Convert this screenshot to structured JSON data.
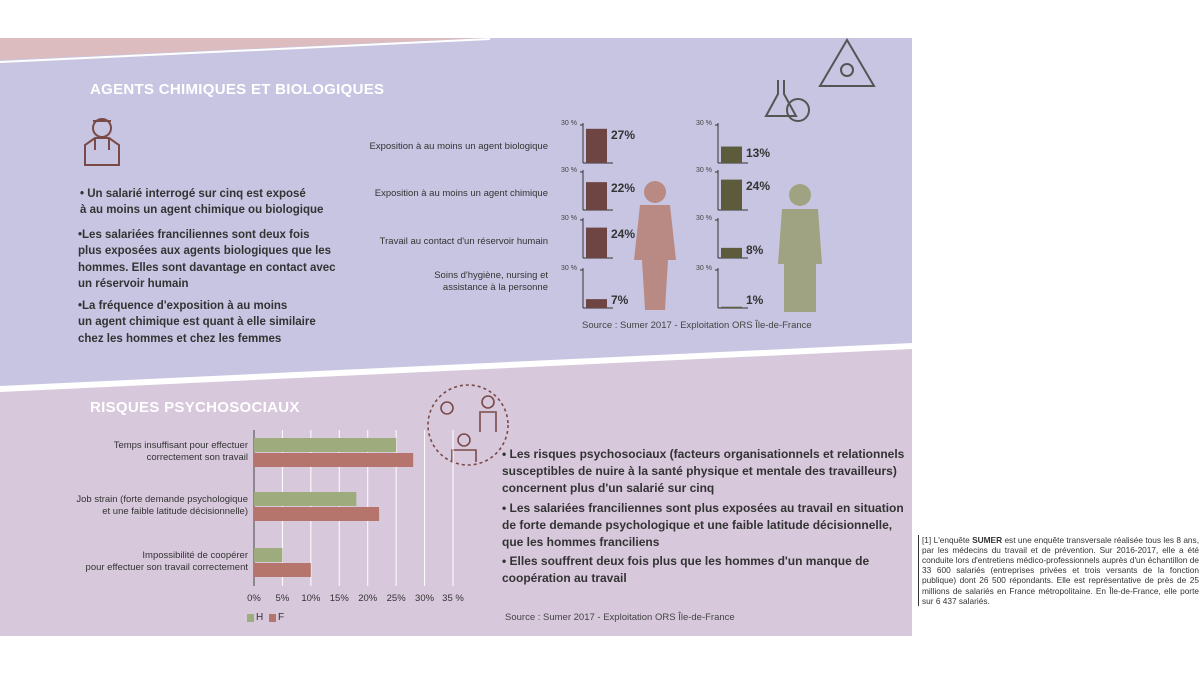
{
  "section1": {
    "title": "AGENTS CHIMIQUES ET BIOLOGIQUES",
    "bullets": [
      "• Un salarié interrogé sur cinq est exposé\nà au moins un agent chimique ou biologique",
      "•Les salariées franciliennes sont deux fois\nplus exposées aux agents biologiques que les\nhommes. Elles sont davantage en contact avec\nun réservoir humain",
      "•La fréquence d'exposition à au moins\nun agent chimique est quant à elle similaire\nchez les hommes et chez les femmes"
    ],
    "source": "Source :  Sumer 2017 - Exploitation ORS Île-de-France"
  },
  "section2": {
    "title": "RISQUES PSYCHOSOCIAUX",
    "bullets": [
      "•  Les risques psychosociaux (facteurs organisationnels et relationnels\nsusceptibles de nuire à la santé physique et mentale des travailleurs)\nconcernent plus d'un salarié sur cinq",
      "• Les salariées franciliennes sont plus exposées au travail en situation\nde forte demande psychologique et une faible latitude décisionnelle,\nque les hommes franciliens",
      "• Elles souffrent deux fois plus que les hommes d'un manque de\ncoopération au travail"
    ],
    "source": "Source :  Sumer 2017 - Exploitation ORS Île-de-France"
  },
  "footnote": {
    "prefix": "[1] L'enquête ",
    "bold": "SUMER",
    "text": " est une enquête transversale réalisée tous les 8 ans, par les médecins du travail et de prévention. Sur 2016-2017, elle a été conduite lors d'entretiens médico-professionnels auprès d'un échantillon de 33 600 salariés (entreprises privées et trois versants de la fonction publique) dont 26 500 répondants. Elle est représentative de près de 25 millions de salariés en France métropolitaine. En Île-de-France, elle porte sur 6 437 salariés."
  },
  "chart_data": [
    {
      "type": "bar",
      "categories": [
        "Exposition à au moins un agent biologique",
        "Exposition à au moins un agent chimique",
        "Travail au contact d'un réservoir humain",
        "Soins d'hygiène, nursing et\nassistance à la personne"
      ],
      "series": [
        {
          "color": "#6e4543",
          "values": [
            27,
            22,
            24,
            7
          ],
          "value_labels": [
            "27%",
            "22%",
            "24%",
            "7%"
          ]
        },
        {
          "color": "#5c5c3c",
          "values": [
            13,
            24,
            8,
            1
          ],
          "value_labels": [
            "13%",
            "24%",
            "8%",
            "1%"
          ]
        }
      ],
      "ylim": [
        0,
        30
      ],
      "yticks": [
        {
          "value": 30,
          "label": "30 %"
        }
      ]
    },
    {
      "type": "barh",
      "categories": [
        "Temps insuffisant pour effectuer\ncorrectement son travail",
        "Job strain (forte demande psychologique\net une faible latitude décisionnelle)",
        "Impossibilité de coopérer\npour effectuer son travail correctement"
      ],
      "series": [
        {
          "name": "H",
          "color": "#9dab7d",
          "values": [
            25,
            18,
            5
          ]
        },
        {
          "name": "F",
          "color": "#b5756d",
          "values": [
            28,
            22,
            10
          ]
        }
      ],
      "xlim": [
        0,
        35
      ],
      "xticks": [
        {
          "value": 0,
          "label": "0%"
        },
        {
          "value": 5,
          "label": "5%"
        },
        {
          "value": 10,
          "label": "10%"
        },
        {
          "value": 15,
          "label": "15%"
        },
        {
          "value": 20,
          "label": "20%"
        },
        {
          "value": 25,
          "label": "25%"
        },
        {
          "value": 30,
          "label": "30%"
        },
        {
          "value": 35,
          "label": "35 %"
        }
      ],
      "grid": true,
      "legend": "bottom-left"
    }
  ]
}
